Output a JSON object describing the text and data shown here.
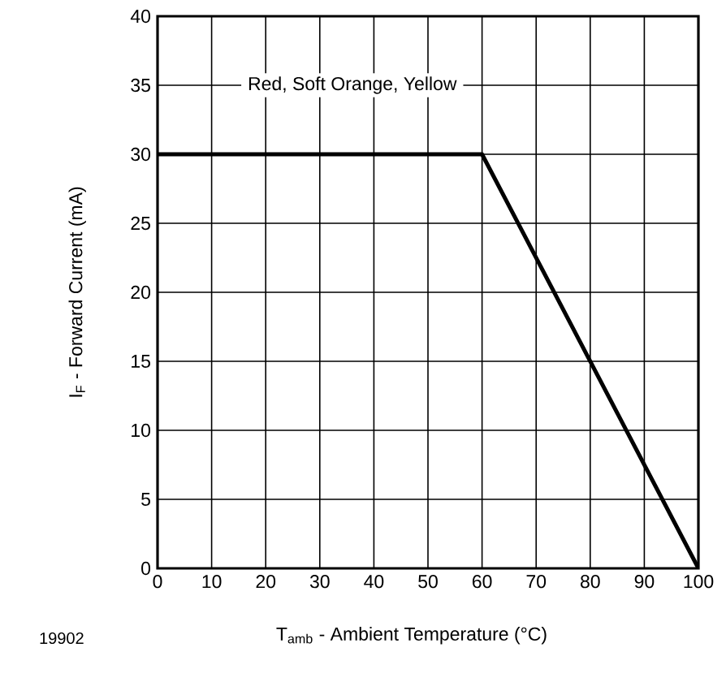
{
  "chart_data": {
    "type": "line",
    "xlabel": "T$_{amb}$ - Ambient Temperature (°C)",
    "ylabel": "I$_{F}$ - Forward Current (mA)",
    "x": [
      0,
      60,
      100
    ],
    "series": [
      {
        "color": "#000000",
        "values": [
          30,
          30,
          0
        ]
      }
    ],
    "xlim": [
      0,
      100
    ],
    "ylim": [
      0,
      40
    ],
    "xticks": [
      0,
      10,
      20,
      30,
      40,
      50,
      60,
      70,
      80,
      90,
      100
    ],
    "yticks": [
      0,
      5,
      10,
      15,
      20,
      25,
      30,
      35,
      40
    ],
    "grid": true,
    "marker": "none",
    "line_style": "solid",
    "annotations": [
      "Red, Soft Orange, Yellow",
      "19902"
    ]
  }
}
